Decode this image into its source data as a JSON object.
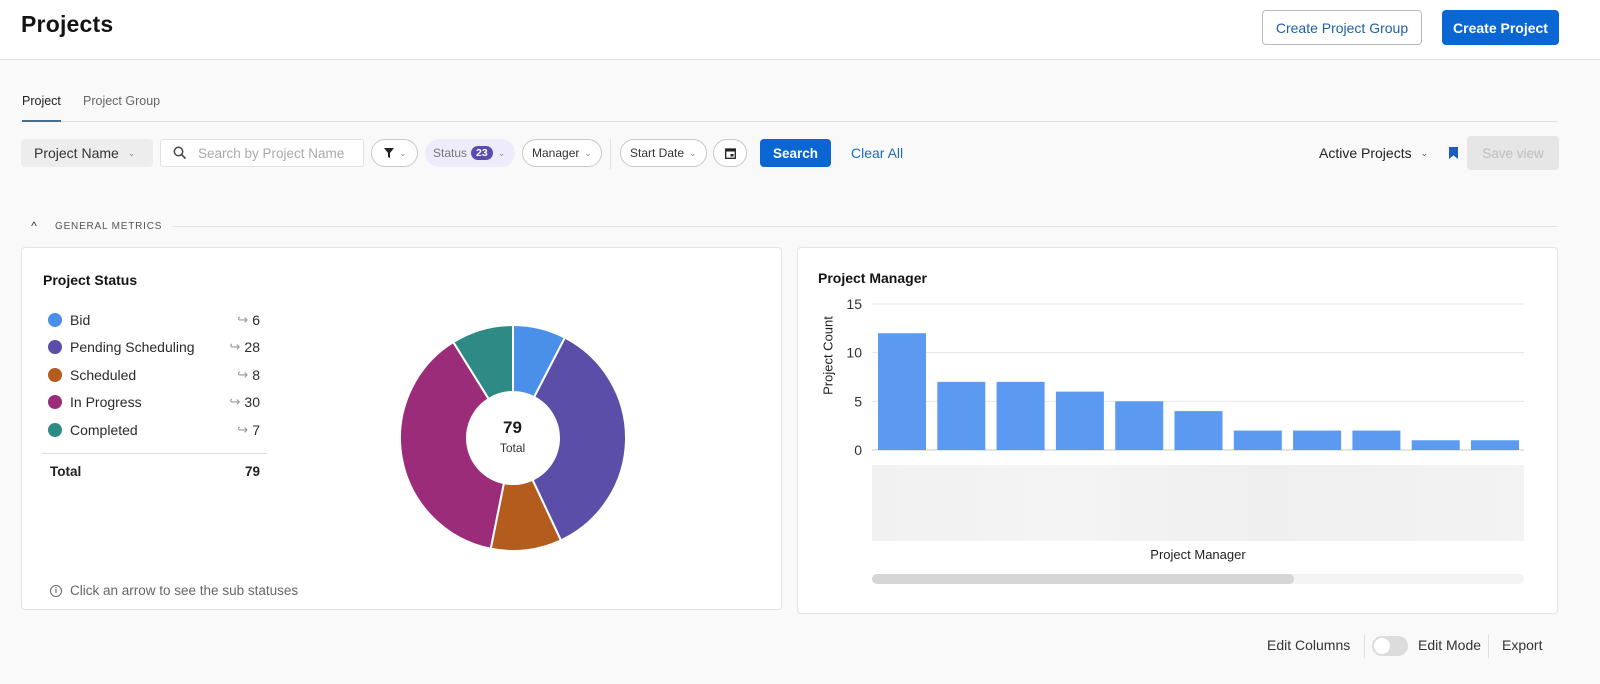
{
  "header": {
    "title": "Projects",
    "create_group_label": "Create Project Group",
    "create_project_label": "Create Project"
  },
  "tabs": [
    {
      "label": "Project",
      "active": true
    },
    {
      "label": "Project Group",
      "active": false
    }
  ],
  "filters": {
    "field_select": "Project Name",
    "search_placeholder": "Search by Project Name",
    "status_label": "Status",
    "status_count": "23",
    "manager_label": "Manager",
    "start_date_label": "Start Date",
    "search_button": "Search",
    "clear_all": "Clear All",
    "view_select": "Active Projects",
    "save_view": "Save view"
  },
  "section": {
    "title": "GENERAL METRICS"
  },
  "status_card": {
    "title": "Project Status",
    "items": [
      {
        "label": "Bid",
        "value": "6",
        "color": "#4a90e8"
      },
      {
        "label": "Pending Scheduling",
        "value": "28",
        "color": "#5b4ea8"
      },
      {
        "label": "Scheduled",
        "value": "8",
        "color": "#b35c1e"
      },
      {
        "label": "In Progress",
        "value": "30",
        "color": "#9b2c7a"
      },
      {
        "label": "Completed",
        "value": "7",
        "color": "#2e8a84"
      }
    ],
    "total_label": "Total",
    "total_value": "79",
    "donut_center_value": "79",
    "donut_center_label": "Total",
    "hint": "Click an arrow to see the sub statuses"
  },
  "manager_card": {
    "title": "Project Manager",
    "y_axis_label": "Project Count",
    "x_axis_label": "Project Manager"
  },
  "footer": {
    "edit_columns": "Edit Columns",
    "edit_mode": "Edit Mode",
    "export": "Export"
  },
  "chart_data": [
    {
      "type": "pie",
      "title": "Project Status",
      "categories": [
        "Bid",
        "Pending Scheduling",
        "Scheduled",
        "In Progress",
        "Completed"
      ],
      "values": [
        6,
        28,
        8,
        30,
        7
      ],
      "colors": [
        "#4a90e8",
        "#5b4ea8",
        "#b35c1e",
        "#9b2c7a",
        "#2e8a84"
      ],
      "total": 79,
      "donut": true,
      "legend_position": "left"
    },
    {
      "type": "bar",
      "title": "Project Manager",
      "xlabel": "Project Manager",
      "ylabel": "Project Count",
      "categories": [
        "",
        "",
        "",
        "",
        "",
        "",
        "",
        "",
        "",
        "",
        ""
      ],
      "values": [
        12,
        7,
        7,
        6,
        5,
        4,
        2,
        2,
        2,
        1,
        1
      ],
      "ylim": [
        0,
        15
      ],
      "yticks": [
        0,
        5,
        10,
        15
      ],
      "grid": true,
      "color": "#5b9af0",
      "note": "x-axis category labels are blurred/obscured"
    }
  ]
}
